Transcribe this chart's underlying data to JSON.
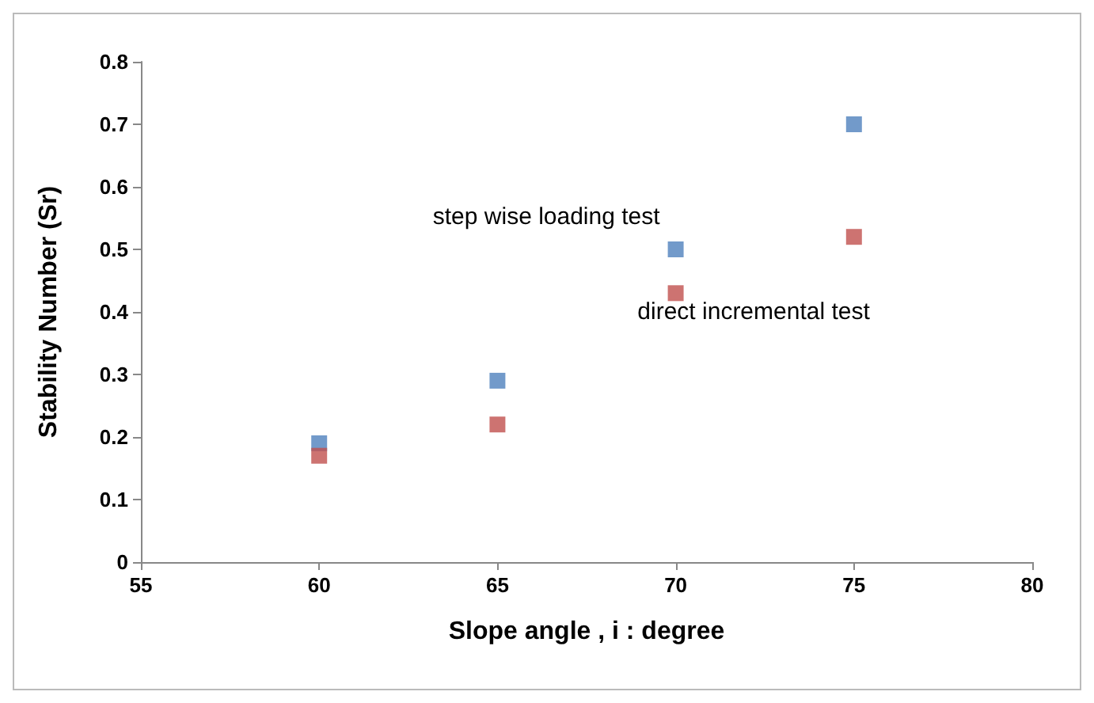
{
  "chart_data": {
    "type": "scatter",
    "xlabel": "Slope angle , i : degree",
    "ylabel": "Stability Number (Sr)",
    "x": [
      60,
      65,
      70,
      75
    ],
    "series": [
      {
        "name": "step wise loading test",
        "color": "#4f81bd",
        "values": [
          0.19,
          0.29,
          0.5,
          0.7
        ]
      },
      {
        "name": "direct incremental test",
        "color": "#c0504d",
        "values": [
          0.17,
          0.22,
          0.43,
          0.52
        ]
      }
    ],
    "xlim": [
      55,
      80
    ],
    "xticks": [
      55,
      60,
      65,
      70,
      75,
      80
    ],
    "ylim": [
      0,
      0.8
    ],
    "yticks": [
      0,
      0.1,
      0.2,
      0.3,
      0.4,
      0.5,
      0.6,
      0.7,
      0.8
    ],
    "grid": false,
    "legend": false,
    "marker": "square"
  }
}
